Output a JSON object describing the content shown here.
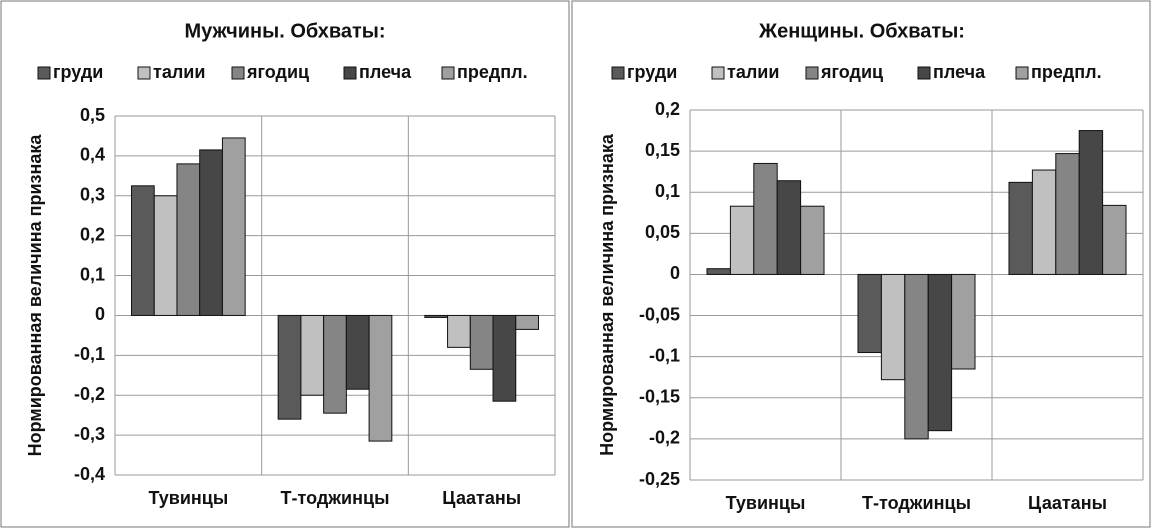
{
  "chart_data": [
    {
      "type": "bar",
      "title": "Мужчины. Обхваты:",
      "y_label": "Нормированная величина признака",
      "categories": [
        "Тувинцы",
        "Т-тоджинцы",
        "Цаатаны"
      ],
      "series": [
        {
          "name": "груди",
          "color": "#5a5a5a",
          "values": [
            0.325,
            -0.26,
            -0.005
          ]
        },
        {
          "name": "талии",
          "color": "#c0c0c0",
          "values": [
            0.3,
            -0.2,
            -0.08
          ]
        },
        {
          "name": "ягодиц",
          "color": "#858585",
          "values": [
            0.38,
            -0.245,
            -0.135
          ]
        },
        {
          "name": "плеча",
          "color": "#474747",
          "values": [
            0.415,
            -0.185,
            -0.215
          ]
        },
        {
          "name": "предпл.",
          "color": "#a0a0a0",
          "values": [
            0.445,
            -0.315,
            -0.035
          ]
        }
      ],
      "ylim": [
        -0.4,
        0.5
      ],
      "yticks": [
        {
          "value": 0.5,
          "label": "0,5"
        },
        {
          "value": 0.4,
          "label": "0,4"
        },
        {
          "value": 0.3,
          "label": "0,3"
        },
        {
          "value": 0.2,
          "label": "0,2"
        },
        {
          "value": 0.1,
          "label": "0,1"
        },
        0,
        {
          "value": -0.1,
          "label": "-0,1"
        },
        {
          "value": -0.2,
          "label": "-0,2"
        },
        {
          "value": -0.3,
          "label": "-0,3"
        },
        {
          "value": -0.4,
          "label": "-0,4"
        }
      ],
      "grid": true,
      "legend": "top"
    },
    {
      "type": "bar",
      "title": "Женщины. Обхваты:",
      "y_label": "Нормированная величина признака",
      "categories": [
        "Тувинцы",
        "Т-тоджинцы",
        "Цаатаны"
      ],
      "series": [
        {
          "name": "груди",
          "color": "#5a5a5a",
          "values": [
            0.007,
            -0.095,
            0.112
          ]
        },
        {
          "name": "талии",
          "color": "#c0c0c0",
          "values": [
            0.083,
            -0.128,
            0.127
          ]
        },
        {
          "name": "ягодиц",
          "color": "#858585",
          "values": [
            0.135,
            -0.2,
            0.147
          ]
        },
        {
          "name": "плеча",
          "color": "#474747",
          "values": [
            0.114,
            -0.19,
            0.175
          ]
        },
        {
          "name": "предпл.",
          "color": "#a0a0a0",
          "values": [
            0.083,
            -0.115,
            0.084
          ]
        }
      ],
      "ylim": [
        -0.25,
        0.2
      ],
      "yticks": [
        {
          "value": 0.2,
          "label": "0,2"
        },
        {
          "value": 0.15,
          "label": "0,15"
        },
        {
          "value": 0.1,
          "label": "0,1"
        },
        {
          "value": 0.05,
          "label": "0,05"
        },
        0,
        {
          "value": -0.05,
          "label": "-0,05"
        },
        {
          "value": -0.1,
          "label": "-0,1"
        },
        {
          "value": -0.15,
          "label": "-0,15"
        },
        {
          "value": -0.2,
          "label": "-0,2"
        },
        {
          "value": -0.25,
          "label": "-0,25"
        }
      ],
      "grid": true,
      "legend": "top"
    }
  ]
}
